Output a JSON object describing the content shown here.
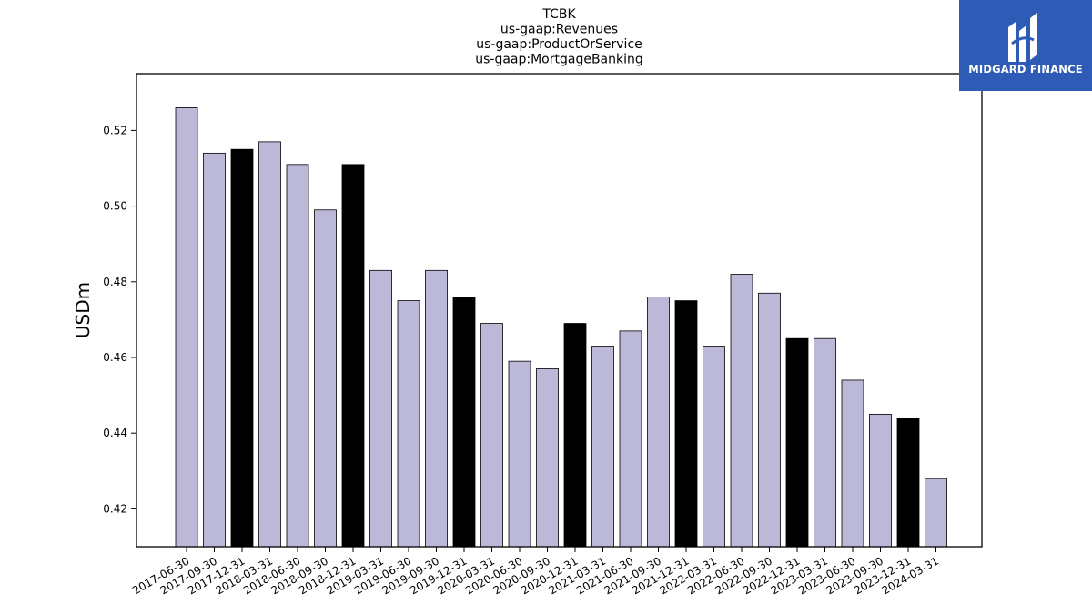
{
  "brand": {
    "name": "MIDGARD FINANCE",
    "bg_color": "#2d5bb5"
  },
  "chart_data": {
    "type": "bar",
    "title_lines": [
      "TCBK",
      "us-gaap:Revenues",
      "us-gaap:ProductOrService",
      "us-gaap:MortgageBanking"
    ],
    "xlabel": "",
    "ylabel": "USDm",
    "ylim": [
      0.41,
      0.535
    ],
    "yticks": [
      0.42,
      0.44,
      0.46,
      0.48,
      0.5,
      0.52
    ],
    "ytick_labels": [
      "0.42",
      "0.44",
      "0.46",
      "0.48",
      "0.50",
      "0.52"
    ],
    "grid": false,
    "legend": "none",
    "colors": {
      "quarter": "#bcb8d8",
      "year_end": "#000000",
      "edge": "#000000"
    },
    "categories": [
      "2017-06-30",
      "2017-09-30",
      "2017-12-31",
      "2018-03-31",
      "2018-06-30",
      "2018-09-30",
      "2018-12-31",
      "2019-03-31",
      "2019-06-30",
      "2019-09-30",
      "2019-12-31",
      "2020-03-31",
      "2020-06-30",
      "2020-09-30",
      "2020-12-31",
      "2021-03-31",
      "2021-06-30",
      "2021-09-30",
      "2021-12-31",
      "2022-03-31",
      "2022-06-30",
      "2022-09-30",
      "2022-12-31",
      "2023-03-31",
      "2023-06-30",
      "2023-09-30",
      "2023-12-31",
      "2024-03-31"
    ],
    "values": [
      0.526,
      0.514,
      0.515,
      0.517,
      0.511,
      0.499,
      0.511,
      0.483,
      0.475,
      0.483,
      0.476,
      0.469,
      0.459,
      0.457,
      0.469,
      0.463,
      0.467,
      0.476,
      0.475,
      0.463,
      0.482,
      0.477,
      0.465,
      0.465,
      0.454,
      0.445,
      0.444,
      0.428
    ]
  }
}
